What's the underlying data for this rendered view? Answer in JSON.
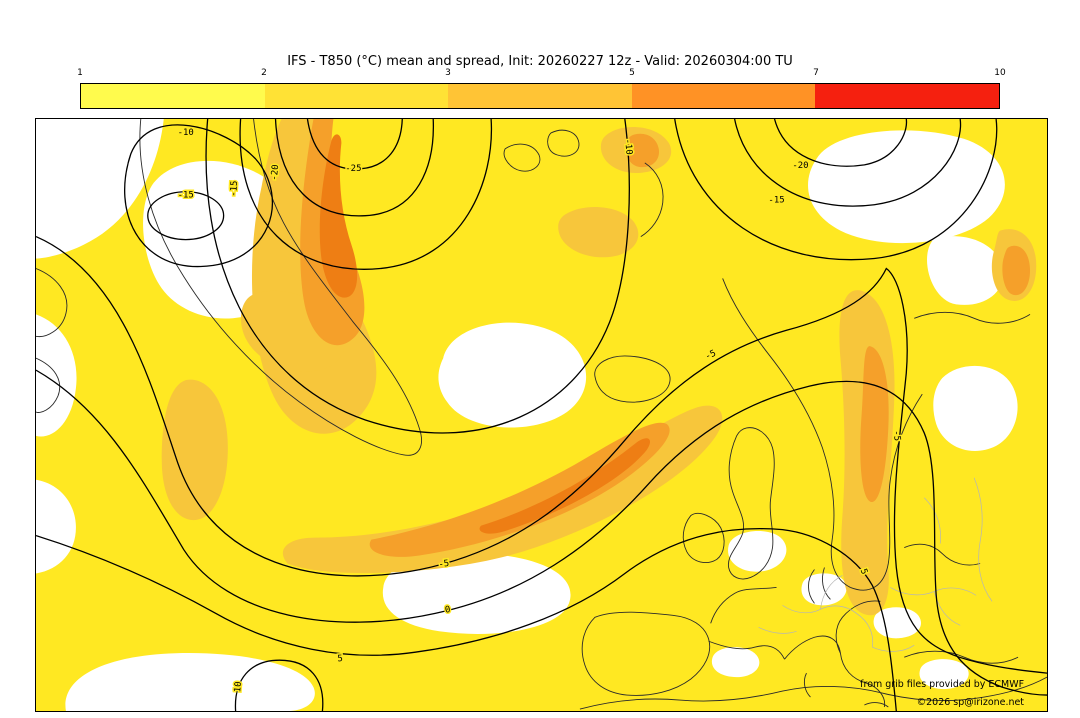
{
  "title": "IFS - T850 (°C) mean and spread, Init: 20260227 12z - Valid: 20260304:00 TU",
  "colorbar": {
    "ticks": [
      "1",
      "2",
      "3",
      "5",
      "7",
      "10"
    ],
    "segments": [
      {
        "from": "1",
        "to": "2",
        "color": "#FFFB4D"
      },
      {
        "from": "2",
        "to": "3",
        "color": "#FFE235"
      },
      {
        "from": "3",
        "to": "5",
        "color": "#FFC435"
      },
      {
        "from": "5",
        "to": "7",
        "color": "#FF9225"
      },
      {
        "from": "7",
        "to": "10",
        "color": "#F5200F"
      }
    ]
  },
  "map": {
    "contour_labels": [
      "-10",
      "-15",
      "-25",
      "-20",
      "-15",
      "-20",
      "-15",
      "-10",
      "-5",
      "-5",
      "-5",
      "0",
      "5",
      "5",
      "10"
    ],
    "credit_line1": "from grib files provided by ECMWF",
    "credit_line2": "©2026 sp@irizone.net",
    "shade_colors": {
      "base_yellow": "#FFE822",
      "low_white": "#FFFFFF",
      "gold": "#F7C63B",
      "orange": "#F5A02A",
      "deep_orange": "#EE7E14"
    }
  },
  "chart_data": {
    "type": "heatmap",
    "title": "IFS - T850 (°C) mean and spread",
    "init_label": "Init: 20260227 12z",
    "valid_label": "Valid: 20260304:00 TU",
    "spread_shading_levels": [
      1,
      2,
      3,
      5,
      7,
      10
    ],
    "mean_contour_levels_visible": [
      -25,
      -20,
      -15,
      -10,
      -5,
      0,
      5,
      10
    ],
    "legend_position": "top",
    "region": "North Atlantic / Europe"
  }
}
